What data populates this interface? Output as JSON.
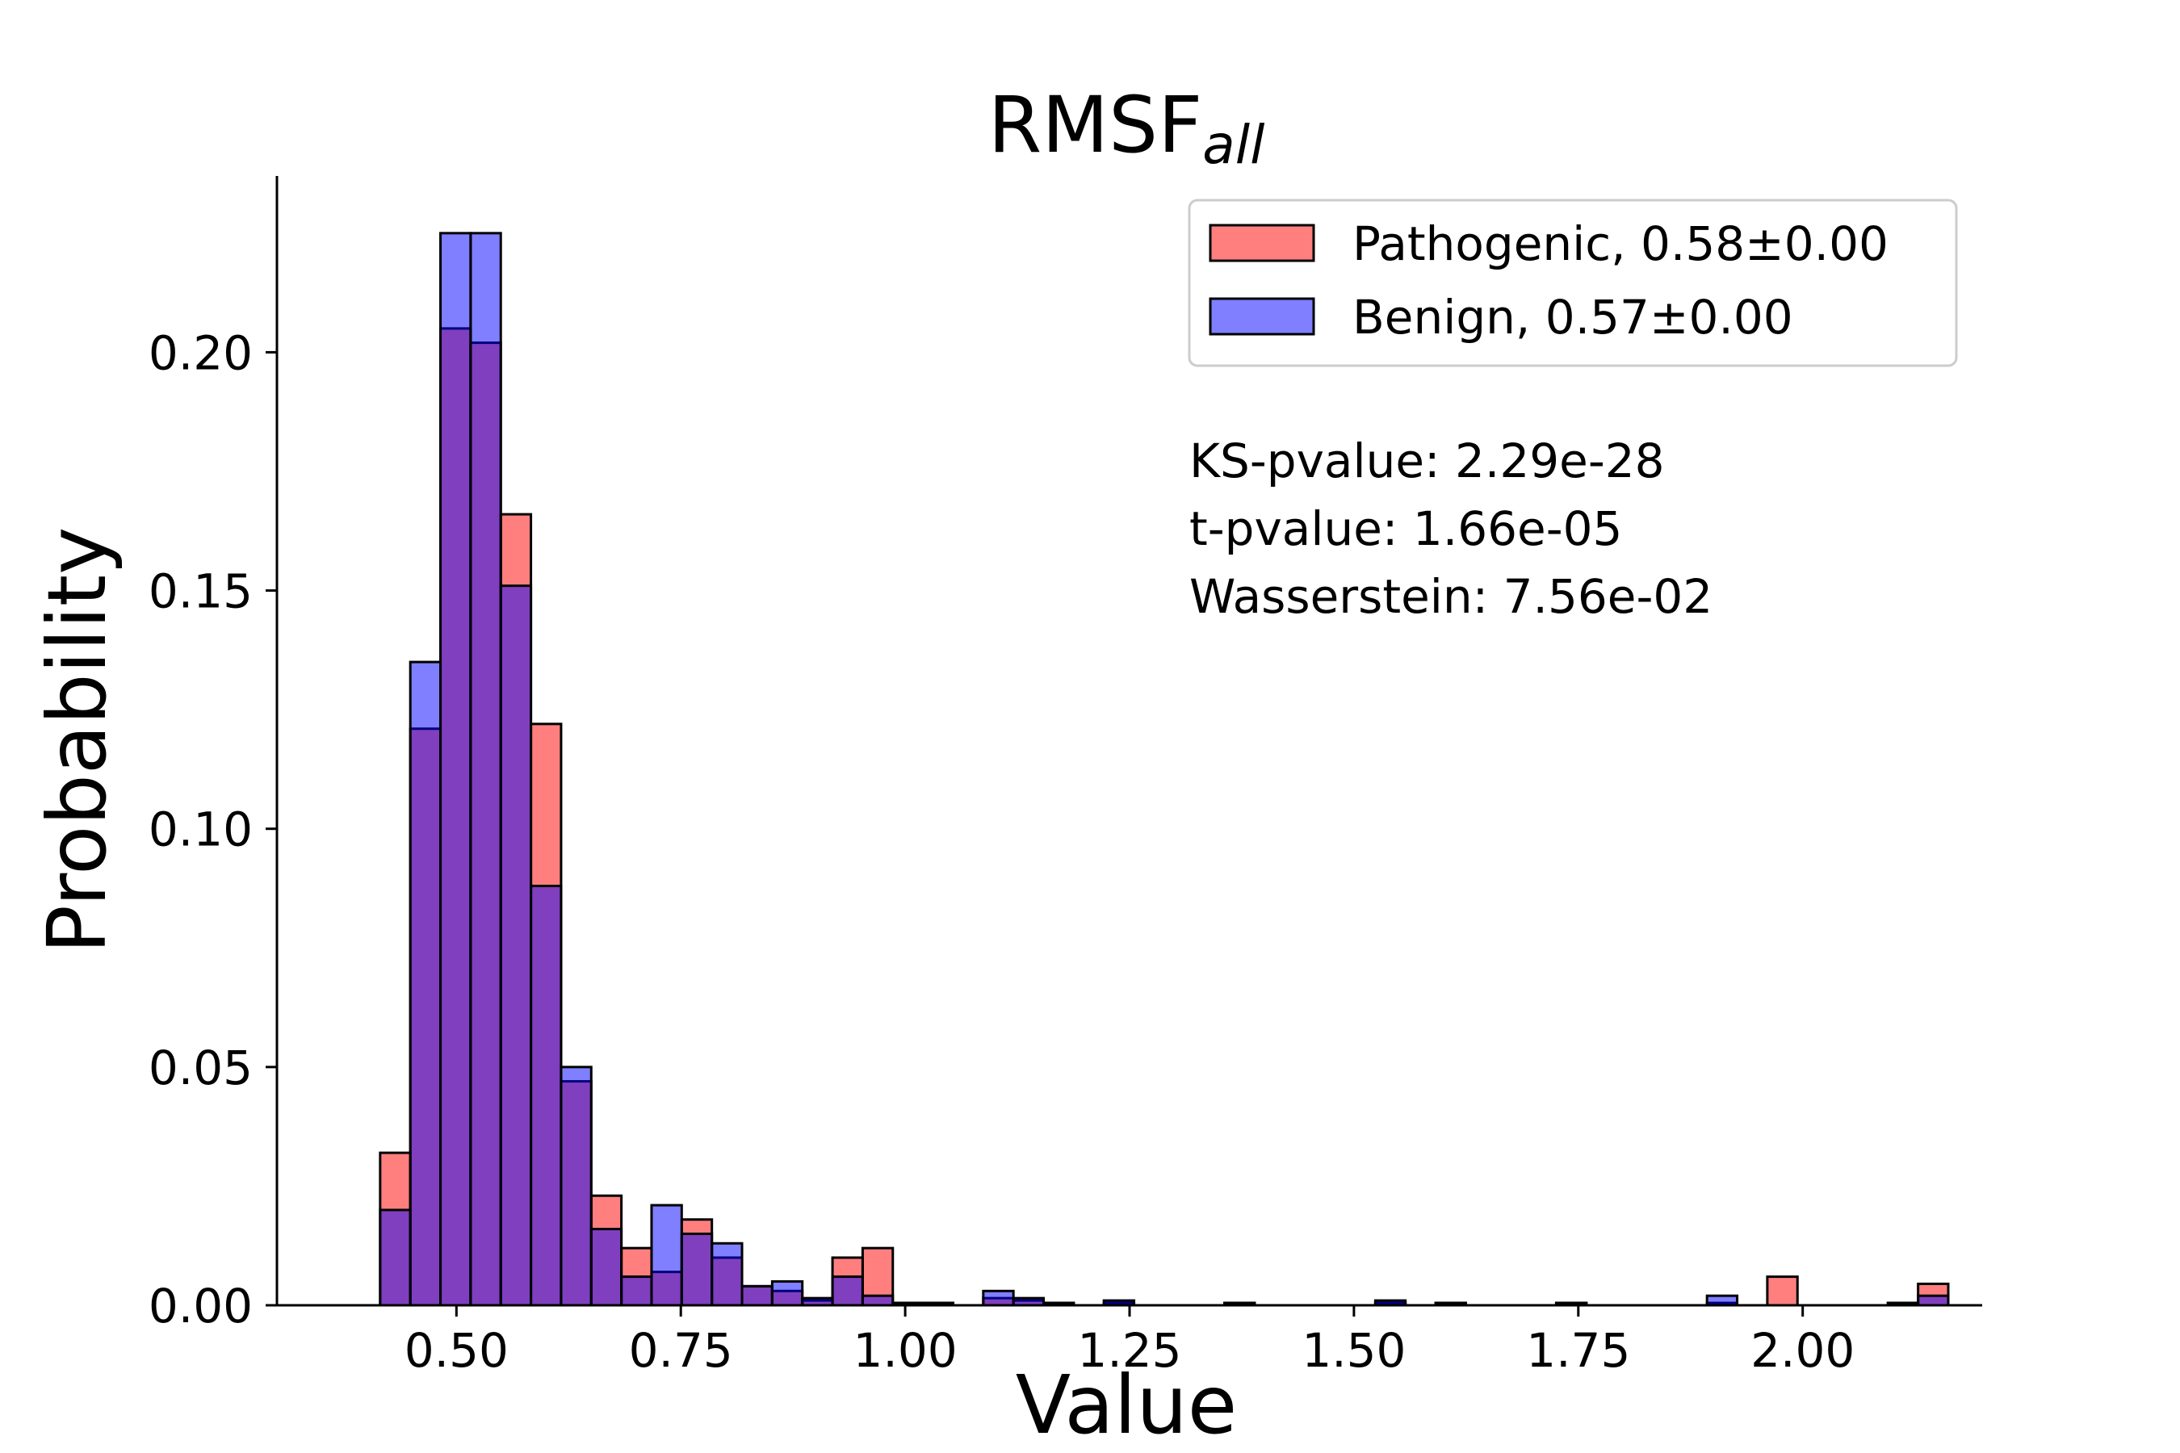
{
  "chart_data": {
    "type": "histogram",
    "title": "RMSF",
    "title_subscript": "all",
    "xlabel": "Value",
    "ylabel": "Probability",
    "xlim": [
      0.3,
      2.2
    ],
    "ylim": [
      0,
      0.237
    ],
    "xticks": [
      "0.50",
      "0.75",
      "1.00",
      "1.25",
      "1.50",
      "1.75",
      "2.00"
    ],
    "yticks": [
      "0.00",
      "0.05",
      "0.10",
      "0.15",
      "0.20"
    ],
    "bin_start": 0.415,
    "bin_width": 0.0336,
    "grid": false,
    "legend_position": "upper right",
    "series": [
      {
        "name": "Pathogenic, 0.58±0.00",
        "color": "#ff0000",
        "alpha": 0.5,
        "values": [
          0.032,
          0.121,
          0.205,
          0.202,
          0.166,
          0.122,
          0.047,
          0.023,
          0.012,
          0.007,
          0.018,
          0.01,
          0.004,
          0.003,
          0.001,
          0.01,
          0.012,
          0.0005,
          0.0005,
          0.0,
          0.0015,
          0.001,
          0.0005,
          0.0,
          0.0005,
          0.0,
          0.0,
          0.0,
          0.0005,
          0.0,
          0.0,
          0.0,
          0.0,
          0.0005,
          0.0,
          0.0005,
          0.0,
          0.0,
          0.0,
          0.0005,
          0.0,
          0.0,
          0.0,
          0.0,
          0.0005,
          0.0,
          0.006,
          0.0,
          0.0,
          0.0,
          0.0005,
          0.0045
        ]
      },
      {
        "name": "Benign, 0.57±0.00",
        "color": "#0000ff",
        "alpha": 0.5,
        "values": [
          0.02,
          0.135,
          0.225,
          0.225,
          0.151,
          0.088,
          0.05,
          0.016,
          0.006,
          0.021,
          0.015,
          0.013,
          0.004,
          0.005,
          0.0015,
          0.006,
          0.002,
          0.0005,
          0.0005,
          0.0,
          0.003,
          0.0015,
          0.0005,
          0.0,
          0.001,
          0.0,
          0.0,
          0.0,
          0.0005,
          0.0,
          0.0,
          0.0,
          0.0,
          0.001,
          0.0,
          0.0005,
          0.0,
          0.0,
          0.0,
          0.0005,
          0.0,
          0.0,
          0.0,
          0.0,
          0.002,
          0.0,
          0.0,
          0.0,
          0.0,
          0.0,
          0.0005,
          0.002
        ]
      }
    ],
    "annotations": [
      "KS-pvalue: 2.29e-28",
      "t-pvalue: 1.66e-05",
      "Wasserstein: 7.56e-02"
    ]
  }
}
